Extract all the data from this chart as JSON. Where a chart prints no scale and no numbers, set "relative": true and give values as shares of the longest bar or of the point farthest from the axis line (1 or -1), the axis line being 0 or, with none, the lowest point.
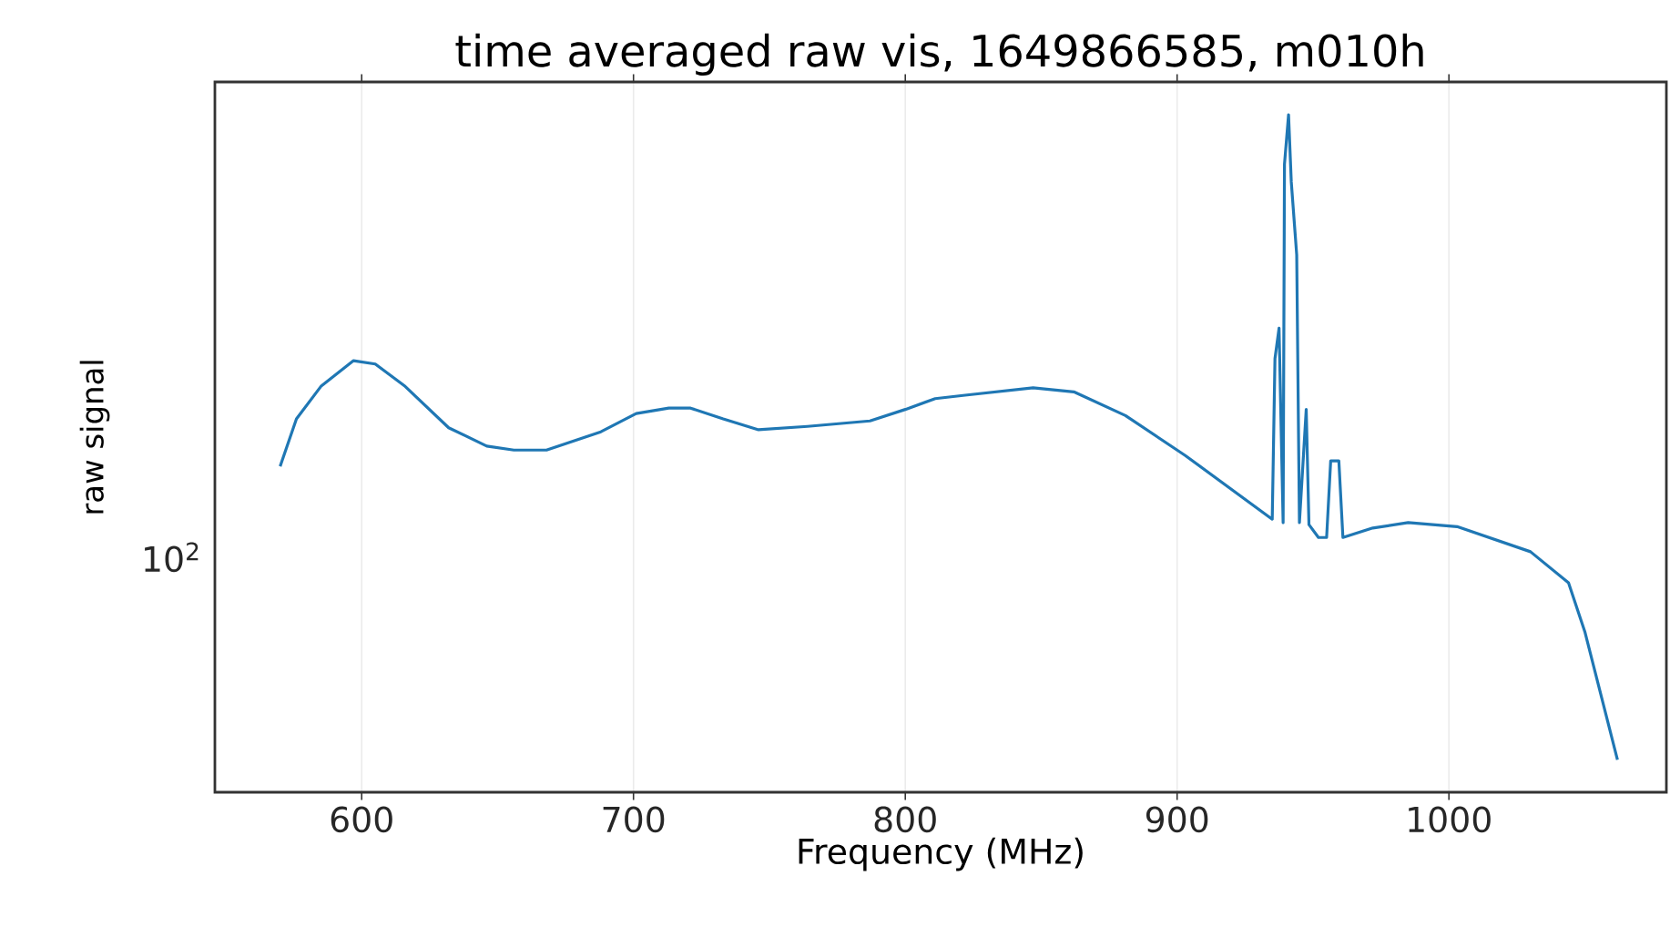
{
  "chart_data": {
    "type": "line",
    "title": "time averaged raw vis, 1649866585, m010h",
    "xlabel": "Frequency (MHz)",
    "ylabel": "raw signal",
    "relative": true,
    "annotations": [
      "10$^{2}$"
    ],
    "xlim": [
      546,
      1080
    ],
    "xticks": [
      600,
      700,
      800,
      900,
      1000
    ],
    "grid": "x",
    "marker": "none",
    "line_style": "solid",
    "x": [
      570,
      576,
      585,
      597,
      605,
      616,
      632,
      646,
      656,
      668,
      688,
      701,
      713,
      721,
      733,
      746,
      764,
      787,
      800,
      811,
      822,
      847,
      862,
      881,
      903,
      935,
      936,
      937.5,
      939,
      939.5,
      941,
      942,
      944,
      945,
      947.5,
      948.5,
      952,
      955,
      956.5,
      959.5,
      961,
      972,
      985,
      1003,
      1030,
      1044,
      1050,
      1062
    ],
    "series": [
      {
        "color": "#1f77b4",
        "values": [
          0.481,
          0.551,
          0.599,
          0.637,
          0.632,
          0.599,
          0.538,
          0.511,
          0.505,
          0.505,
          0.532,
          0.559,
          0.567,
          0.567,
          0.551,
          0.535,
          0.54,
          0.548,
          0.565,
          0.581,
          0.586,
          0.597,
          0.591,
          0.556,
          0.497,
          0.403,
          0.64,
          0.685,
          0.398,
          0.927,
          1.0,
          0.901,
          0.793,
          0.398,
          0.565,
          0.395,
          0.376,
          0.376,
          0.489,
          0.489,
          0.376,
          0.39,
          0.398,
          0.392,
          0.355,
          0.309,
          0.237,
          0.048
        ]
      }
    ]
  }
}
